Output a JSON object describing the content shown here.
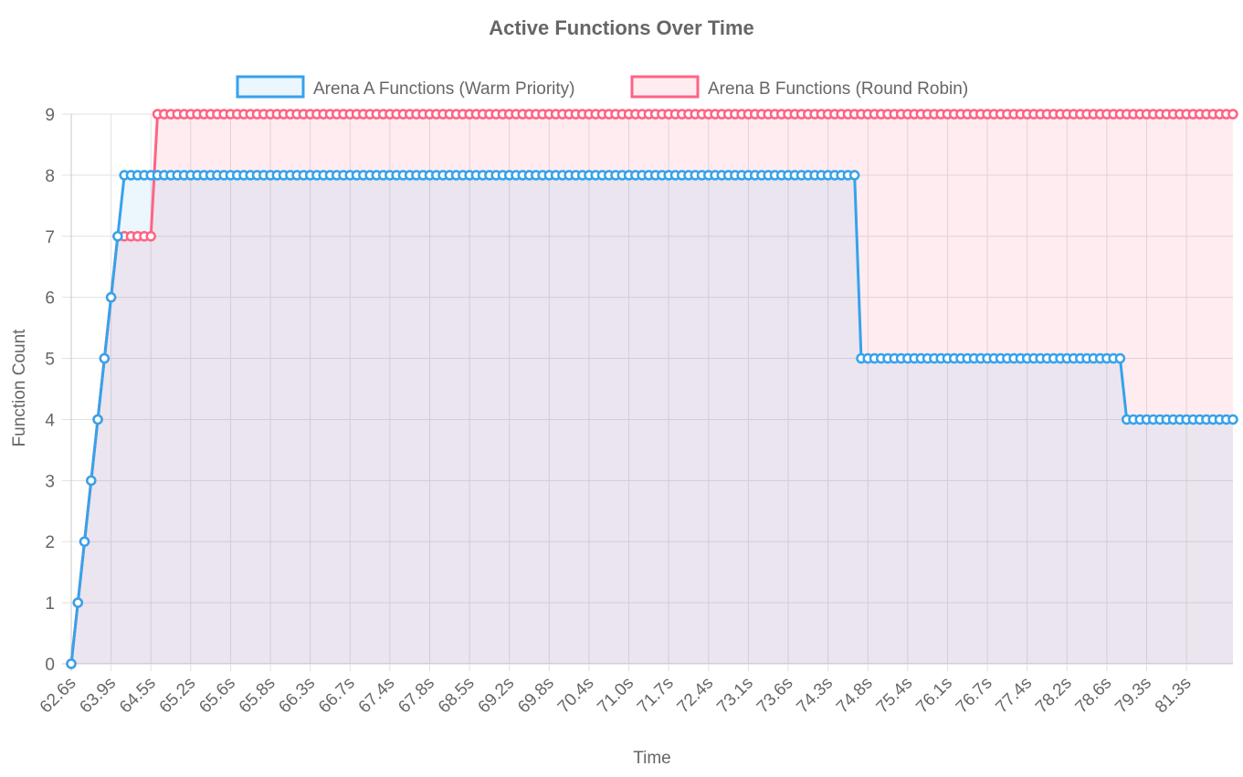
{
  "chart_data": {
    "type": "line",
    "title": "Active Functions Over Time",
    "xlabel": "Time",
    "ylabel": "Function Count",
    "ylim": [
      0,
      9
    ],
    "y_ticks": [
      0,
      1,
      2,
      3,
      4,
      5,
      6,
      7,
      8,
      9
    ],
    "grid": true,
    "legend_position": "top-center",
    "x_start": 62.6,
    "x_step": 0.1,
    "x_count": 176,
    "x_tick_labels": [
      "62.6s",
      "63.9s",
      "64.5s",
      "65.2s",
      "65.6s",
      "65.8s",
      "66.3s",
      "66.7s",
      "67.4s",
      "67.8s",
      "68.5s",
      "69.2s",
      "69.8s",
      "70.4s",
      "71.0s",
      "71.7s",
      "72.4s",
      "73.1s",
      "73.6s",
      "74.3s",
      "74.8s",
      "75.4s",
      "76.1s",
      "76.7s",
      "77.4s",
      "78.2s",
      "78.6s",
      "79.3s",
      "81.3s"
    ],
    "x_tick_every": 6,
    "series": [
      {
        "name": "Arena A Functions (Warm Priority)",
        "color": "#36a2eb",
        "fill": "rgba(54,162,235,0.10)",
        "segments": [
          {
            "values": [
              0,
              1,
              2,
              3,
              4,
              5,
              6,
              7
            ]
          },
          {
            "value": 8,
            "count": 111
          },
          {
            "value": 5,
            "count": 40
          },
          {
            "value": 4,
            "count": 17
          }
        ]
      },
      {
        "name": "Arena B Functions (Round Robin)",
        "color": "#ff6384",
        "fill": "rgba(255,99,132,0.12)",
        "segments": [
          {
            "values": [
              0,
              1,
              2,
              3,
              4,
              5,
              6,
              7,
              7,
              7,
              7,
              7,
              7
            ]
          },
          {
            "value": 9,
            "count": 163
          }
        ]
      }
    ]
  }
}
